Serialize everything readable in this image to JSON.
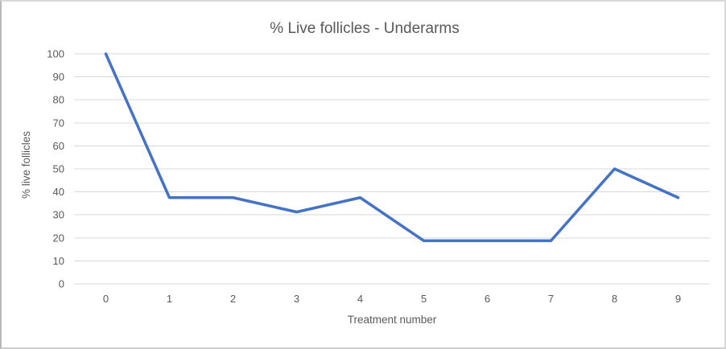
{
  "window": {
    "background": "#ffffff",
    "frame_border_color": "#d9d9d9"
  },
  "chart_data": {
    "type": "line",
    "title": "% Live follicles - Underarms",
    "xlabel": "Treatment number",
    "ylabel": "% live follicles",
    "categories": [
      0,
      1,
      2,
      3,
      4,
      5,
      6,
      7,
      8,
      9
    ],
    "series": [
      {
        "name": "% live follicles",
        "values": [
          100,
          37.5,
          37.5,
          31.25,
          37.5,
          18.75,
          18.75,
          18.75,
          50,
          37.5
        ]
      }
    ],
    "ylim": [
      0,
      100
    ],
    "yticks": [
      0,
      10,
      20,
      30,
      40,
      50,
      60,
      70,
      80,
      90,
      100
    ],
    "grid": "horizontal",
    "legend": "none",
    "markers": "none",
    "colors": {
      "line": "#4472C4",
      "gridline": "#d9d9d9",
      "axis_text": "#595959",
      "title_text": "#595959"
    }
  }
}
